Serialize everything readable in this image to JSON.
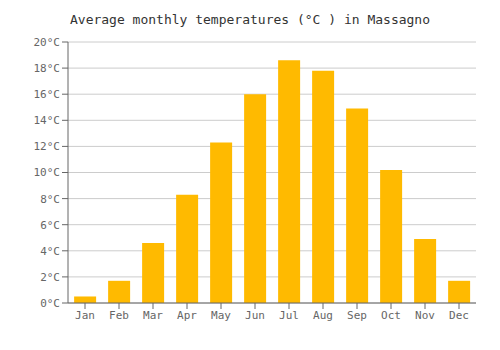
{
  "chart_data": {
    "type": "bar",
    "title": "Average monthly temperatures (°C ) in Massagno",
    "categories": [
      "Jan",
      "Feb",
      "Mar",
      "Apr",
      "May",
      "Jun",
      "Jul",
      "Aug",
      "Sep",
      "Oct",
      "Nov",
      "Dec"
    ],
    "values": [
      0.5,
      1.7,
      4.6,
      8.3,
      12.3,
      16.0,
      18.6,
      17.8,
      14.9,
      10.2,
      4.9,
      1.7
    ],
    "color": "#FFBA00",
    "ylim": [
      0,
      20
    ],
    "yticks": [
      {
        "value": 0,
        "label": "0°C"
      },
      {
        "value": 2,
        "label": "2°C"
      },
      {
        "value": 4,
        "label": "4°C"
      },
      {
        "value": 6,
        "label": "6°C"
      },
      {
        "value": 8,
        "label": "8°C"
      },
      {
        "value": 10,
        "label": "10°C"
      },
      {
        "value": 12,
        "label": "12°C"
      },
      {
        "value": 14,
        "label": "14°C"
      },
      {
        "value": 16,
        "label": "16°C"
      },
      {
        "value": 18,
        "label": "18°C"
      },
      {
        "value": 20,
        "label": "20°C"
      }
    ],
    "grid": true
  }
}
